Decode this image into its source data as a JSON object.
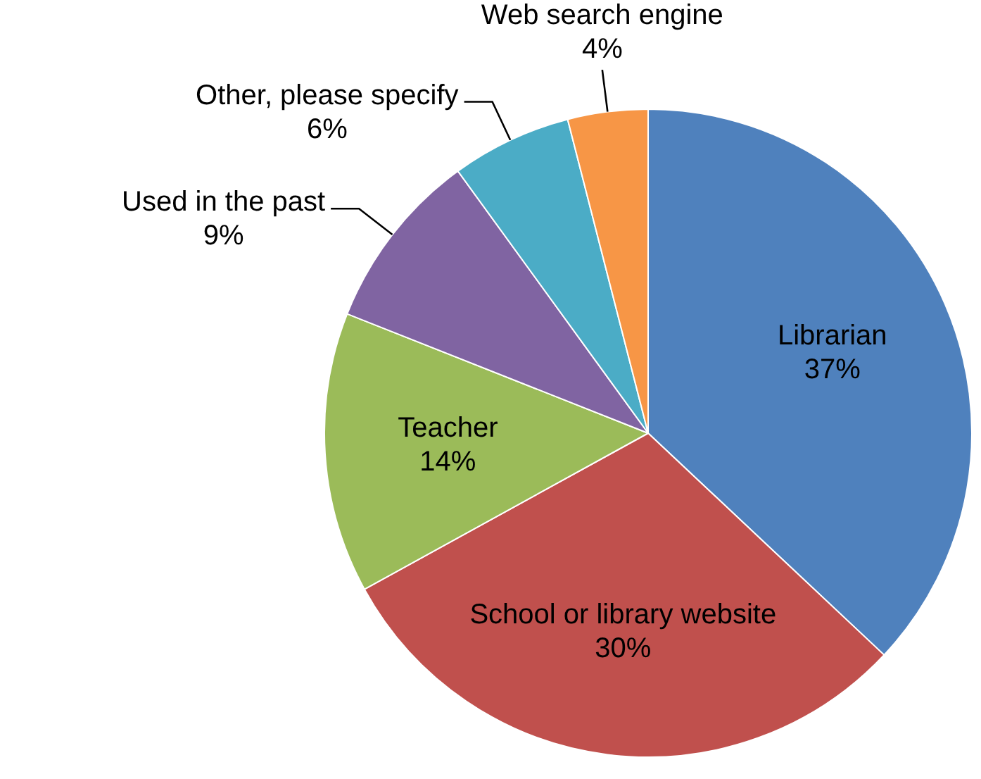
{
  "chart_data": {
    "type": "pie",
    "categories": [
      "Librarian",
      "School or library website",
      "Teacher",
      "Used in the past",
      "Other, please specify",
      "Web search engine"
    ],
    "values": [
      37,
      30,
      14,
      9,
      6,
      4
    ],
    "value_labels": [
      "37%",
      "30%",
      "14%",
      "9%",
      "6%",
      "4%"
    ],
    "colors": [
      "#4f81bd",
      "#c0504d",
      "#9bbb59",
      "#8064a2",
      "#4bacc6",
      "#f79646"
    ],
    "legend": false
  }
}
